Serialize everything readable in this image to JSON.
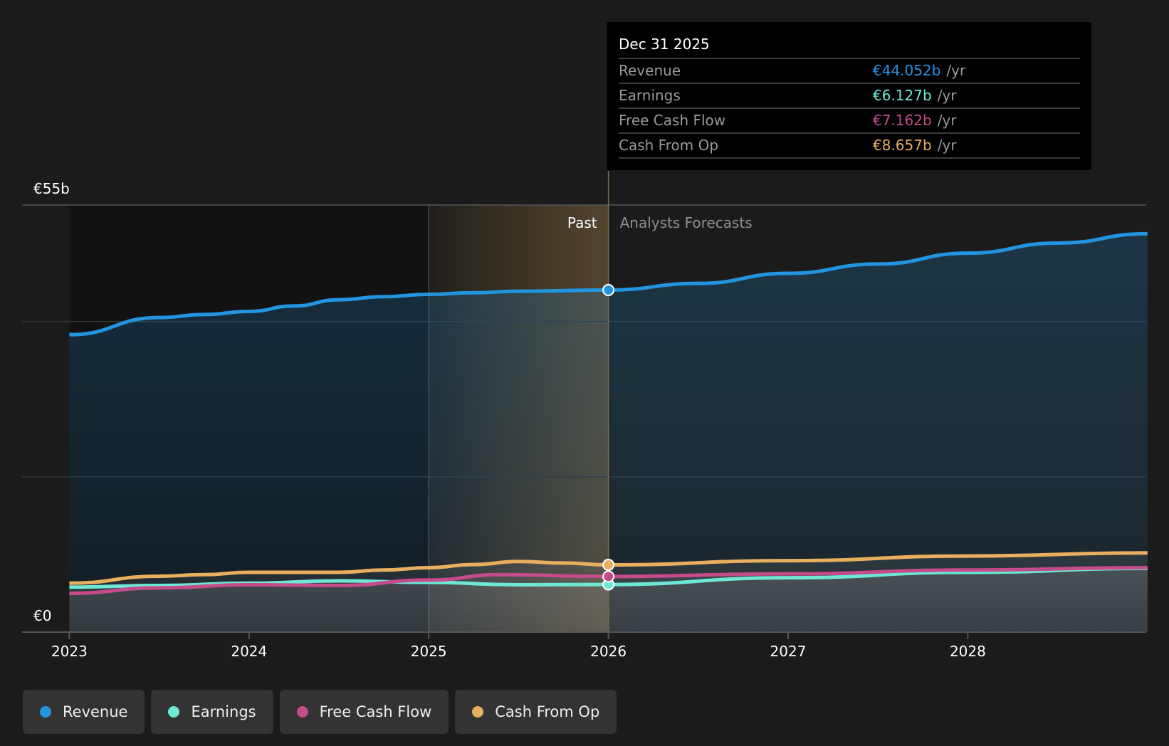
{
  "chart_data": {
    "type": "area",
    "y_unit": "€b",
    "ylim": [
      0,
      55
    ],
    "y_tick_labels": [
      {
        "value": 55,
        "label": "€55b"
      },
      {
        "value": 0,
        "label": "€0"
      }
    ],
    "gridlines": [
      20,
      40,
      55
    ],
    "xlim": [
      2023,
      2029
    ],
    "x_ticks": [
      "2023",
      "2024",
      "2025",
      "2026",
      "2027",
      "2028"
    ],
    "divider_x": 2026,
    "highlight_range": [
      2025,
      2026
    ],
    "past_label": "Past",
    "forecast_label": "Analysts Forecasts",
    "series": [
      {
        "name": "Revenue",
        "color": "#2394df",
        "x": [
          2023,
          2023.5,
          2023.75,
          2024,
          2024.25,
          2024.5,
          2024.75,
          2025,
          2025.25,
          2025.5,
          2026,
          2026.5,
          2027,
          2027.5,
          2028,
          2028.5,
          2029
        ],
        "y": [
          38.3,
          40.5,
          40.9,
          41.3,
          42.0,
          42.8,
          43.2,
          43.5,
          43.7,
          43.9,
          44.052,
          44.9,
          46.2,
          47.4,
          48.8,
          50.1,
          51.3
        ]
      },
      {
        "name": "Earnings",
        "color": "#6ee8d5",
        "x": [
          2023,
          2023.5,
          2024,
          2024.5,
          2025,
          2025.5,
          2026,
          2027,
          2028,
          2029
        ],
        "y": [
          5.8,
          6.0,
          6.3,
          6.6,
          6.4,
          6.1,
          6.127,
          7.0,
          7.7,
          8.2
        ]
      },
      {
        "name": "Free Cash Flow",
        "color": "#c64b8b",
        "x": [
          2023,
          2023.5,
          2024,
          2024.5,
          2025,
          2025.4,
          2026,
          2027,
          2028,
          2029
        ],
        "y": [
          5.0,
          5.7,
          6.1,
          6.0,
          6.7,
          7.4,
          7.162,
          7.5,
          8.0,
          8.3
        ]
      },
      {
        "name": "Cash From Op",
        "color": "#e8af5f",
        "x": [
          2023,
          2023.5,
          2023.75,
          2024,
          2024.5,
          2024.75,
          2025,
          2025.25,
          2025.5,
          2025.75,
          2026,
          2027,
          2028,
          2029
        ],
        "y": [
          6.3,
          7.2,
          7.4,
          7.7,
          7.7,
          8.0,
          8.3,
          8.7,
          9.1,
          8.9,
          8.657,
          9.2,
          9.8,
          10.2
        ]
      }
    ]
  },
  "tooltip": {
    "date": "Dec 31 2025",
    "unit": "/yr",
    "rows": [
      {
        "label": "Revenue",
        "value": "€44.052b",
        "color": "#2394df"
      },
      {
        "label": "Earnings",
        "value": "€6.127b",
        "color": "#6ee8d5"
      },
      {
        "label": "Free Cash Flow",
        "value": "€7.162b",
        "color": "#c64b8b"
      },
      {
        "label": "Cash From Op",
        "value": "€8.657b",
        "color": "#e8af5f"
      }
    ]
  },
  "legend": [
    {
      "label": "Revenue",
      "color": "#2394df"
    },
    {
      "label": "Earnings",
      "color": "#6ee8d5"
    },
    {
      "label": "Free Cash Flow",
      "color": "#c64b8b"
    },
    {
      "label": "Cash From Op",
      "color": "#e8af5f"
    }
  ]
}
